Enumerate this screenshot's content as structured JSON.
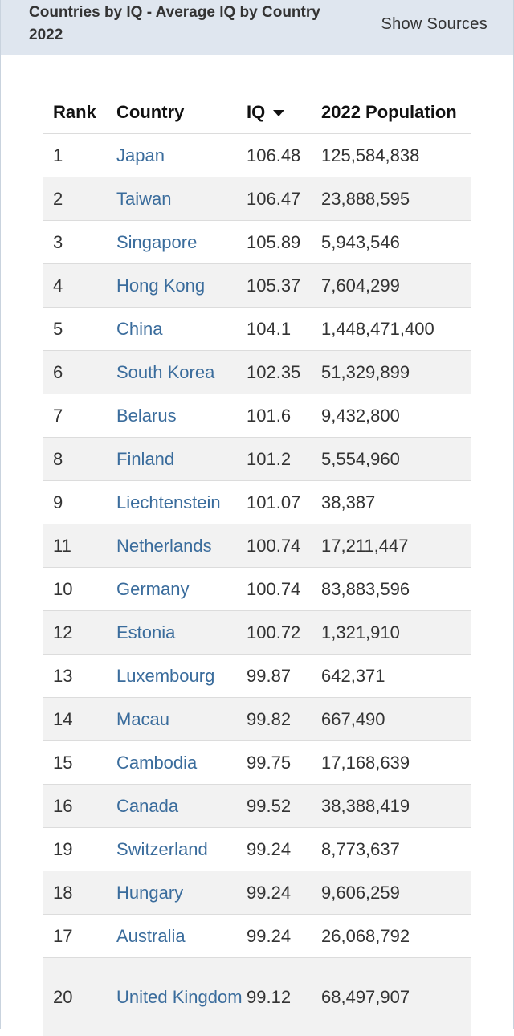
{
  "header": {
    "title": "Countries by IQ - Average IQ by Country 2022",
    "link": "Show Sources"
  },
  "table": {
    "columns": [
      "Rank",
      "Country",
      "IQ",
      "2022 Population"
    ],
    "rows": [
      [
        "1",
        "Japan",
        "106.48",
        "125,584,838"
      ],
      [
        "2",
        "Taiwan",
        "106.47",
        "23,888,595"
      ],
      [
        "3",
        "Singapore",
        "105.89",
        "5,943,546"
      ],
      [
        "4",
        "Hong Kong",
        "105.37",
        "7,604,299"
      ],
      [
        "5",
        "China",
        "104.1",
        "1,448,471,400"
      ],
      [
        "6",
        "South Korea",
        "102.35",
        "51,329,899"
      ],
      [
        "7",
        "Belarus",
        "101.6",
        "9,432,800"
      ],
      [
        "8",
        "Finland",
        "101.2",
        "5,554,960"
      ],
      [
        "9",
        "Liechtenstein",
        "101.07",
        "38,387"
      ],
      [
        "11",
        "Netherlands",
        "100.74",
        "17,211,447"
      ],
      [
        "10",
        "Germany",
        "100.74",
        "83,883,596"
      ],
      [
        "12",
        "Estonia",
        "100.72",
        "1,321,910"
      ],
      [
        "13",
        "Luxembourg",
        "99.87",
        "642,371"
      ],
      [
        "14",
        "Macau",
        "99.82",
        "667,490"
      ],
      [
        "15",
        "Cambodia",
        "99.75",
        "17,168,639"
      ],
      [
        "16",
        "Canada",
        "99.52",
        "38,388,419"
      ],
      [
        "19",
        "Switzerland",
        "99.24",
        "8,773,637"
      ],
      [
        "18",
        "Hungary",
        "99.24",
        "9,606,259"
      ],
      [
        "17",
        "Australia",
        "99.24",
        "26,068,792"
      ],
      [
        "20",
        "United Kingdom",
        "99.12",
        "68,497,907"
      ]
    ]
  }
}
